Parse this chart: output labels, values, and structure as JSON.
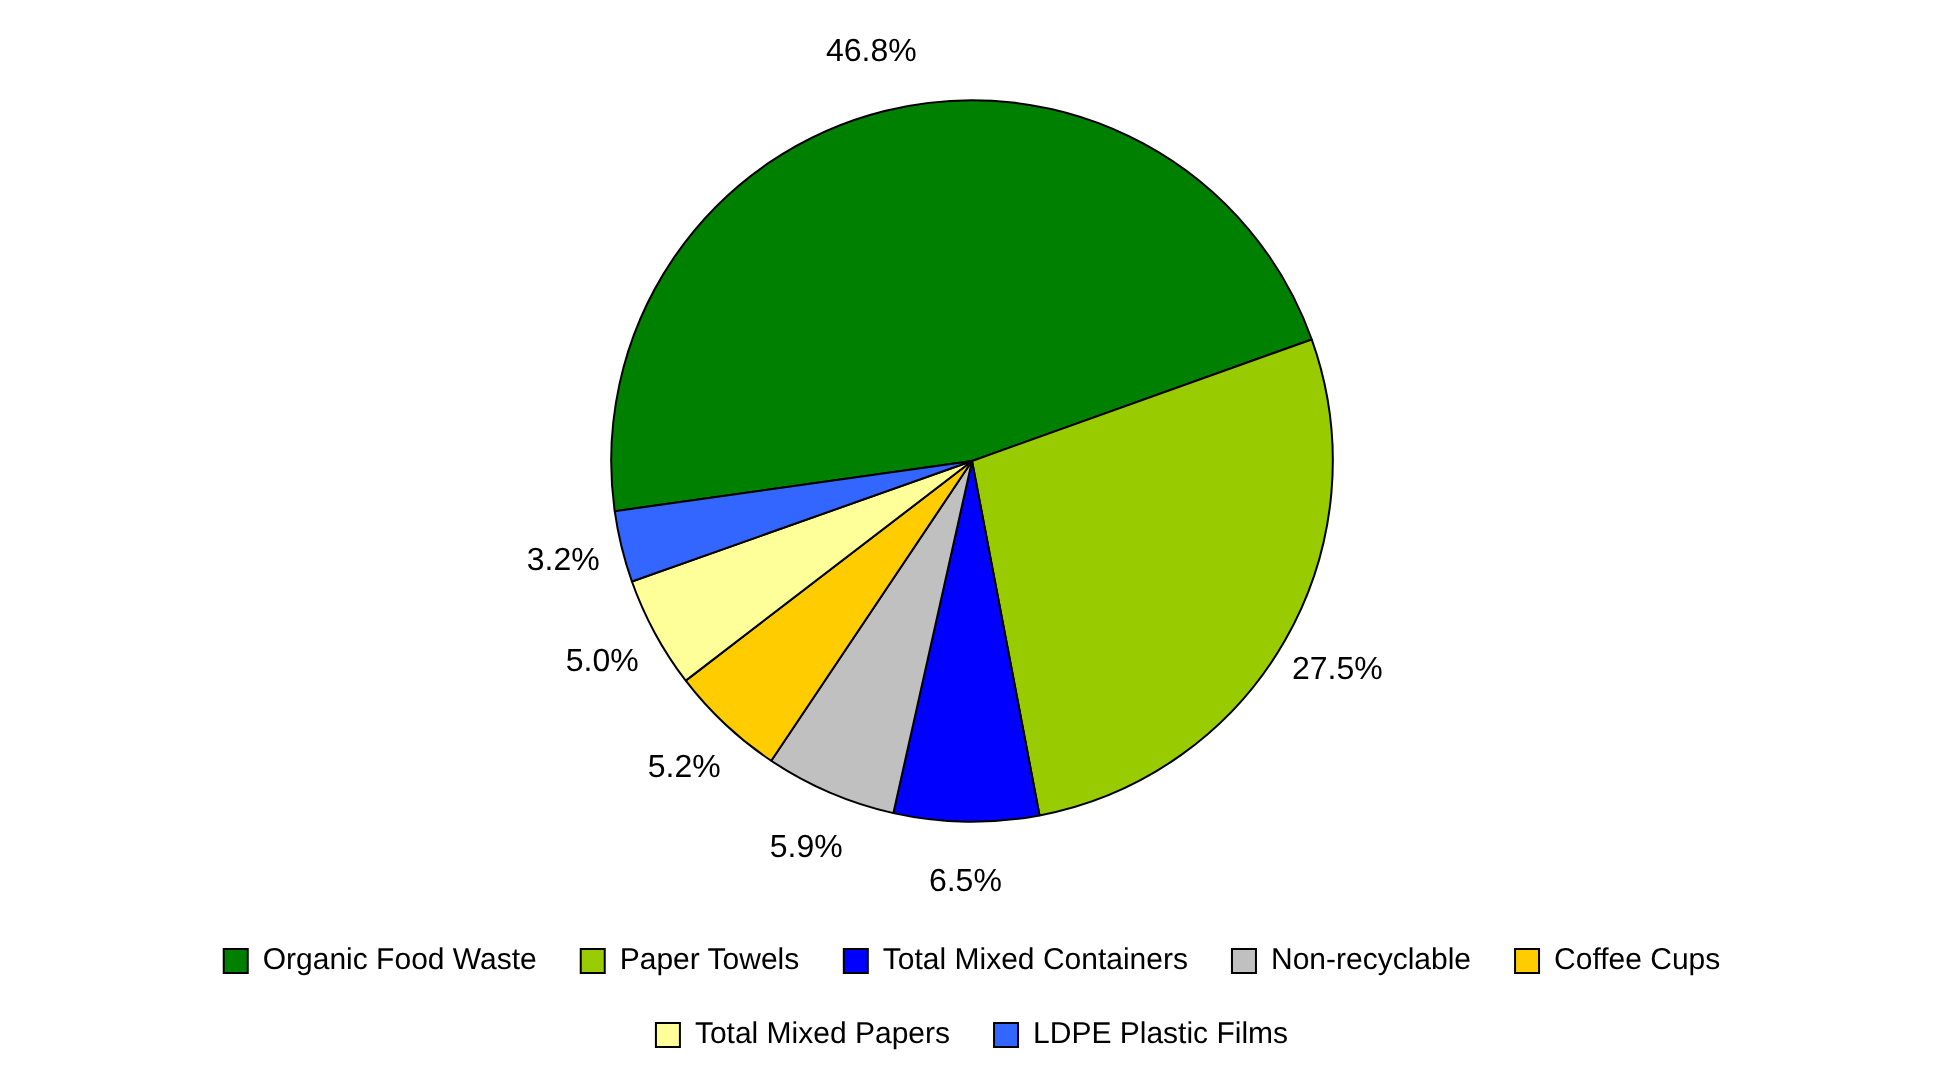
{
  "chart_data": {
    "type": "pie",
    "categories": [
      "Organic Food Waste",
      "Paper Towels",
      "Total Mixed Containers",
      "Non-recyclable",
      "Coffee Cups",
      "Total Mixed Papers",
      "LDPE Plastic Films"
    ],
    "values": [
      46.8,
      27.5,
      6.5,
      5.9,
      5.2,
      5.0,
      3.2
    ],
    "colors": [
      "#008000",
      "#99cc00",
      "#0000ff",
      "#c0c0c0",
      "#ffcc00",
      "#ffff99",
      "#3366ff"
    ],
    "value_labels": [
      "46.8%",
      "27.5%",
      "6.5%",
      "5.9%",
      "5.2%",
      "5.0%",
      "3.2%"
    ],
    "legend": "bottom"
  }
}
